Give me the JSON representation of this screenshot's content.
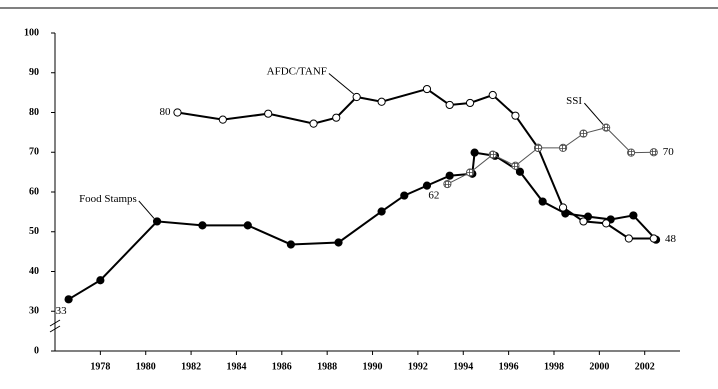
{
  "chart_data": {
    "type": "line",
    "xlim": [
      1976,
      2003.6
    ],
    "xticks": [
      1978,
      1980,
      1982,
      1984,
      1986,
      1988,
      1990,
      1992,
      1994,
      1996,
      1998,
      2000,
      2002
    ],
    "ylim": [
      20,
      100
    ],
    "yticks": [
      {
        "value": 20,
        "label": "0"
      },
      30,
      40,
      50,
      60,
      70,
      80,
      90,
      100
    ],
    "series": [
      {
        "name": "Food Stamps",
        "color": "#000000",
        "marker": "filled",
        "line_width": 2,
        "x": [
          1976.6,
          1978,
          1980.5,
          1982.5,
          1984.5,
          1986.4,
          1988.5,
          1990.4,
          1991.4,
          1992.4,
          1993.4,
          1994.4,
          1994.5,
          1995.4,
          1996.5,
          1997.5,
          1998.5,
          1999.5,
          2000.5,
          2001.5,
          2002.5
        ],
        "values": [
          33,
          37.8,
          52.6,
          51.6,
          51.6,
          46.8,
          47.3,
          55.1,
          59.1,
          61.6,
          64.1,
          64.6,
          69.9,
          69.1,
          65.1,
          57.6,
          54.6,
          53.8,
          53.1,
          54.1,
          48
        ],
        "value_labels": [
          "33",
          null,
          null,
          null,
          null,
          null,
          null,
          null,
          null,
          null,
          null,
          null,
          null,
          null,
          null,
          null,
          null,
          null,
          null,
          null,
          "48"
        ]
      },
      {
        "name": "AFDC/TANF",
        "color": "#000000",
        "marker": "open",
        "line_width": 2,
        "x": [
          1981.4,
          1983.4,
          1985.4,
          1987.4,
          1988.4,
          1989.3,
          1990.4,
          1992.4,
          1993.4,
          1994.3,
          1995.3,
          1996.3,
          1997.3,
          1998.4,
          1999.3,
          2000.3,
          2001.3,
          2002.4
        ],
        "values": [
          80,
          78.2,
          79.7,
          77.2,
          78.7,
          83.9,
          82.7,
          85.9,
          81.9,
          82.4,
          84.4,
          79.2,
          71.1,
          56.1,
          52.6,
          52.1,
          48.3,
          48.3
        ],
        "value_labels": [
          "80",
          null,
          null,
          null,
          null,
          null,
          null,
          null,
          null,
          null,
          null,
          null,
          null,
          null,
          null,
          null,
          null,
          null
        ]
      },
      {
        "name": "SSI",
        "color": "#555555",
        "marker": "hatched",
        "line_width": 1,
        "x": [
          1993.3,
          1994.3,
          1995.3,
          1996.3,
          1997.3,
          1998.4,
          1999.3,
          2000.3,
          2001.4,
          2002.4
        ],
        "values": [
          62,
          64.9,
          69.4,
          66.6,
          71.1,
          71.1,
          74.7,
          76.2,
          69.9,
          70
        ],
        "value_labels": [
          "62",
          null,
          null,
          null,
          null,
          null,
          null,
          null,
          null,
          "70"
        ]
      }
    ]
  }
}
